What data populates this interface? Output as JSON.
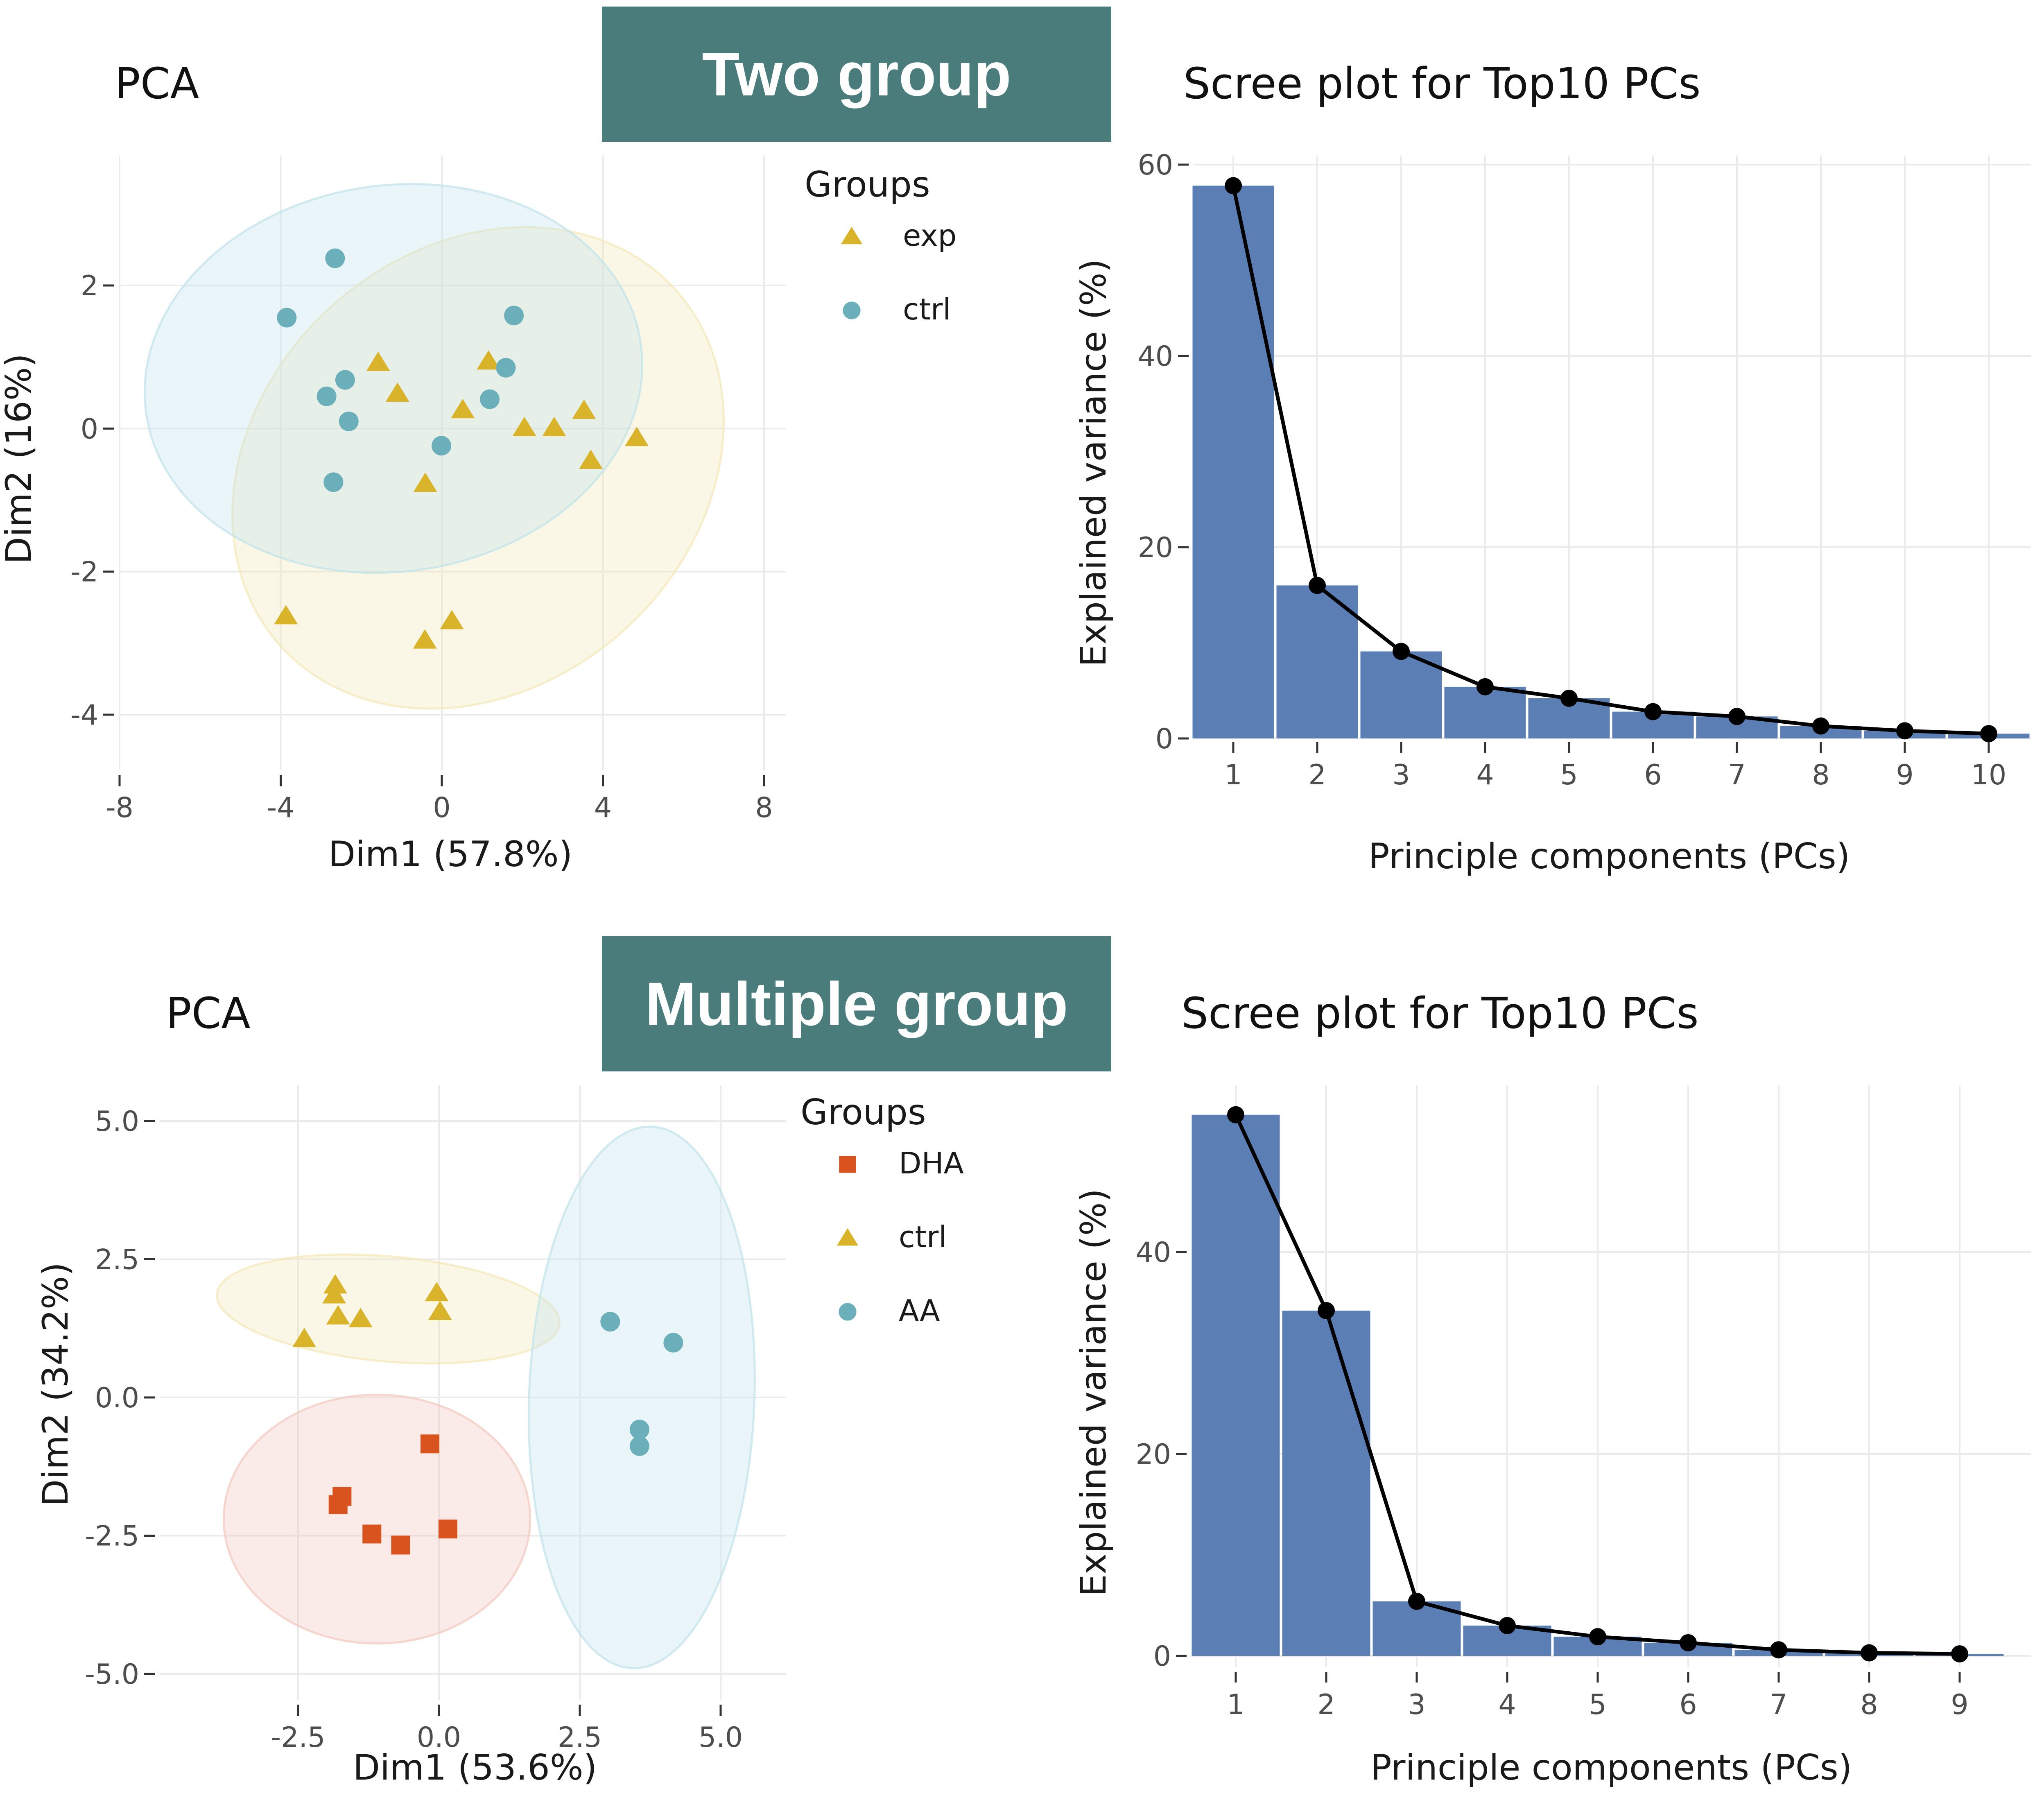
{
  "banners": {
    "top": "Two group",
    "bottom": "Multiple group"
  },
  "colors": {
    "banner": "#4a7c7b",
    "triangle": "#d9b32a",
    "circle": "#6aafba",
    "square": "#d9531e",
    "bar": "#5b7fb4",
    "line": "#000000"
  },
  "chart_data": [
    {
      "type": "scatter",
      "title": "PCA",
      "xlabel": "Dim1 (57.8%)",
      "ylabel": "Dim2 (16%)",
      "xlim": [
        -8,
        8.3
      ],
      "ylim": [
        -4.6,
        3.8
      ],
      "xticks": [
        -8,
        -4,
        0,
        4,
        8
      ],
      "yticks": [
        2,
        0,
        -2,
        -4
      ],
      "xtick_labels": [
        "-8",
        "-4",
        "0",
        "4",
        "8"
      ],
      "ytick_labels": [
        "2",
        "0",
        "-2",
        "-4"
      ],
      "grid": true,
      "legend": {
        "title": "Groups",
        "placement": "right"
      },
      "series": [
        {
          "name": "exp",
          "shape": "triangle",
          "color": "#d9b32a",
          "ellipse": {
            "cx": 0.9,
            "cy": -0.55,
            "rx": 6.6,
            "ry": 3.05,
            "angle_deg": 42,
            "fill": "#f3e7b6"
          },
          "points": [
            [
              -1.58,
              0.92
            ],
            [
              1.16,
              0.94
            ],
            [
              -1.1,
              0.49
            ],
            [
              0.52,
              0.26
            ],
            [
              3.53,
              0.25
            ],
            [
              2.05,
              0.01
            ],
            [
              2.79,
              0.01
            ],
            [
              4.84,
              -0.13
            ],
            [
              3.7,
              -0.45
            ],
            [
              -0.41,
              -0.77
            ],
            [
              -3.87,
              -2.62
            ],
            [
              0.25,
              -2.69
            ],
            [
              -0.42,
              -2.96
            ]
          ]
        },
        {
          "name": "ctrl",
          "shape": "circle",
          "color": "#6aafba",
          "ellipse": {
            "cx": -1.2,
            "cy": 0.7,
            "rx": 6.2,
            "ry": 2.7,
            "angle_deg": 8,
            "fill": "#bfe3ea"
          },
          "points": [
            [
              -2.65,
              2.38
            ],
            [
              -3.85,
              1.55
            ],
            [
              1.79,
              1.58
            ],
            [
              1.59,
              0.85
            ],
            [
              -2.4,
              0.68
            ],
            [
              -2.86,
              0.45
            ],
            [
              1.19,
              0.41
            ],
            [
              -2.31,
              0.1
            ],
            [
              -0.01,
              -0.24
            ],
            [
              -2.69,
              -0.75
            ]
          ]
        }
      ]
    },
    {
      "type": "bar",
      "title": "Scree plot for Top10 PCs",
      "xlabel": "Principle components (PCs)",
      "ylabel": "Explained variance (%)",
      "categories": [
        "1",
        "2",
        "3",
        "4",
        "5",
        "6",
        "7",
        "8",
        "9",
        "10"
      ],
      "values": [
        57.8,
        16.0,
        9.1,
        5.4,
        4.2,
        2.8,
        2.3,
        1.3,
        0.8,
        0.5
      ],
      "overlay": "line",
      "ylim": [
        0,
        60
      ],
      "yticks": [
        0,
        20,
        40,
        60
      ],
      "ytick_labels": [
        "0",
        "20",
        "40",
        "60"
      ],
      "grid": true
    },
    {
      "type": "scatter",
      "title": "PCA",
      "xlabel": "Dim1 (53.6%)",
      "ylabel": "Dim2 (34.2%)",
      "xlim": [
        -4.7,
        6.1
      ],
      "ylim": [
        -5.3,
        5.5
      ],
      "xticks": [
        -2.5,
        0,
        2.5,
        5
      ],
      "yticks": [
        5,
        2.5,
        0,
        -2.5,
        -5
      ],
      "xtick_labels": [
        "-2.5",
        "0.0",
        "2.5",
        "5.0"
      ],
      "ytick_labels": [
        "5.0",
        "2.5",
        "0.0",
        "-2.5",
        "-5.0"
      ],
      "grid": true,
      "legend": {
        "title": "Groups",
        "placement": "right"
      },
      "series": [
        {
          "name": "DHA",
          "shape": "square",
          "color": "#d9531e",
          "ellipse": {
            "cx": -1.1,
            "cy": -2.2,
            "rx": 2.72,
            "ry": 2.25,
            "angle_deg": 0,
            "fill": "#f2c7bd"
          },
          "points": [
            [
              -0.16,
              -0.84
            ],
            [
              -1.72,
              -1.79
            ],
            [
              -1.79,
              -1.94
            ],
            [
              -1.19,
              -2.47
            ],
            [
              -0.68,
              -2.67
            ],
            [
              0.16,
              -2.38
            ]
          ]
        },
        {
          "name": "ctrl",
          "shape": "triangle",
          "color": "#d9b32a",
          "ellipse": {
            "cx": -0.9,
            "cy": 1.6,
            "rx": 3.05,
            "ry": 0.95,
            "angle_deg": -5,
            "fill": "#f3e7b6"
          },
          "points": [
            [
              -1.84,
              2.03
            ],
            [
              -1.86,
              1.85
            ],
            [
              -1.79,
              1.47
            ],
            [
              -1.39,
              1.42
            ],
            [
              -2.39,
              1.06
            ],
            [
              -0.04,
              1.89
            ],
            [
              0.02,
              1.55
            ]
          ]
        },
        {
          "name": "AA",
          "shape": "circle",
          "color": "#6aafba",
          "ellipse": {
            "cx": 3.6,
            "cy": 0.0,
            "rx": 2.0,
            "ry": 4.9,
            "angle_deg": -2,
            "fill": "#bfe3ea"
          },
          "points": [
            [
              3.04,
              1.37
            ],
            [
              4.16,
              0.99
            ],
            [
              3.56,
              -0.58
            ],
            [
              3.56,
              -0.88
            ]
          ]
        }
      ]
    },
    {
      "type": "bar",
      "title": "Scree plot for Top10 PCs",
      "xlabel": "Principle components (PCs)",
      "ylabel": "Explained variance (%)",
      "categories": [
        "1",
        "2",
        "3",
        "4",
        "5",
        "6",
        "7",
        "8",
        "9"
      ],
      "values": [
        53.6,
        34.2,
        5.4,
        3.0,
        1.9,
        1.3,
        0.6,
        0.3,
        0.2
      ],
      "overlay": "line",
      "ylim": [
        0,
        55
      ],
      "yticks": [
        0,
        20,
        40
      ],
      "ytick_labels": [
        "0",
        "20",
        "40"
      ],
      "grid": true
    }
  ]
}
